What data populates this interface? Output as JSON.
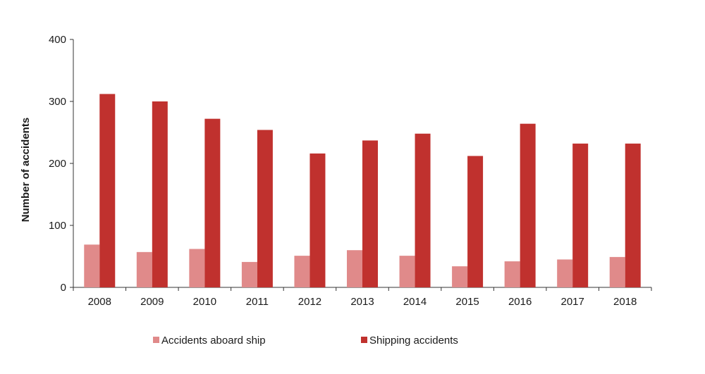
{
  "chart_data": {
    "type": "bar",
    "title": "",
    "xlabel": "",
    "ylabel": "Number of accidents",
    "ylim": [
      0,
      400
    ],
    "yticks": [
      0,
      100,
      200,
      300,
      400
    ],
    "categories": [
      "2008",
      "2009",
      "2010",
      "2011",
      "2012",
      "2013",
      "2014",
      "2015",
      "2016",
      "2017",
      "2018"
    ],
    "series": [
      {
        "name": "Accidents aboard ship",
        "color": "#e08a8a",
        "values": [
          69,
          57,
          62,
          41,
          51,
          60,
          51,
          34,
          42,
          45,
          49
        ]
      },
      {
        "name": "Shipping accidents",
        "color": "#c0312e",
        "values": [
          312,
          300,
          272,
          254,
          216,
          237,
          248,
          212,
          264,
          232,
          232
        ]
      }
    ],
    "grid": false,
    "legend": "bottom"
  }
}
